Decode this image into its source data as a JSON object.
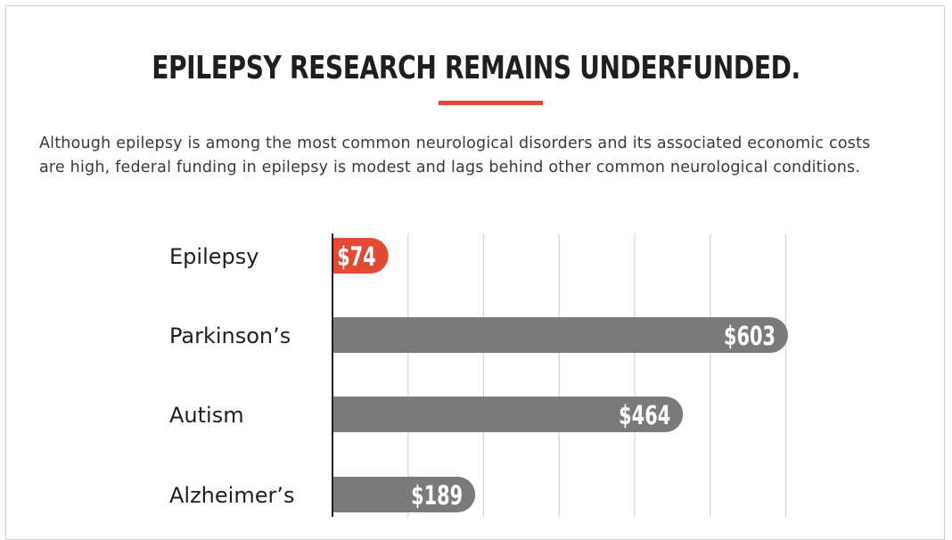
{
  "title": "EPILEPSY RESEARCH REMAINS UNDERFUNDED.",
  "subtitle_lines": [
    "Although epilepsy is among the most common neurological disorders and its associated economic costs",
    "are high, federal funding in epilepsy is modest and lags behind other common neurological conditions."
  ],
  "colors": {
    "accent": "#e24a33",
    "bar_default": "#7a7a7c",
    "grid": "#d4d4d4",
    "axis": "#231f20"
  },
  "chart_data": {
    "type": "bar",
    "orientation": "horizontal",
    "categories": [
      "Epilepsy",
      "Parkinson’s",
      "Autism",
      "Alzheimer’s"
    ],
    "values": [
      74,
      603,
      464,
      189
    ],
    "value_labels": [
      "$74",
      "$603",
      "$464",
      "$189"
    ],
    "highlight_category": "Epilepsy",
    "xlim": [
      0,
      600
    ],
    "grid": true,
    "gridline_values": [
      0,
      100,
      200,
      300,
      400,
      500,
      600
    ]
  }
}
